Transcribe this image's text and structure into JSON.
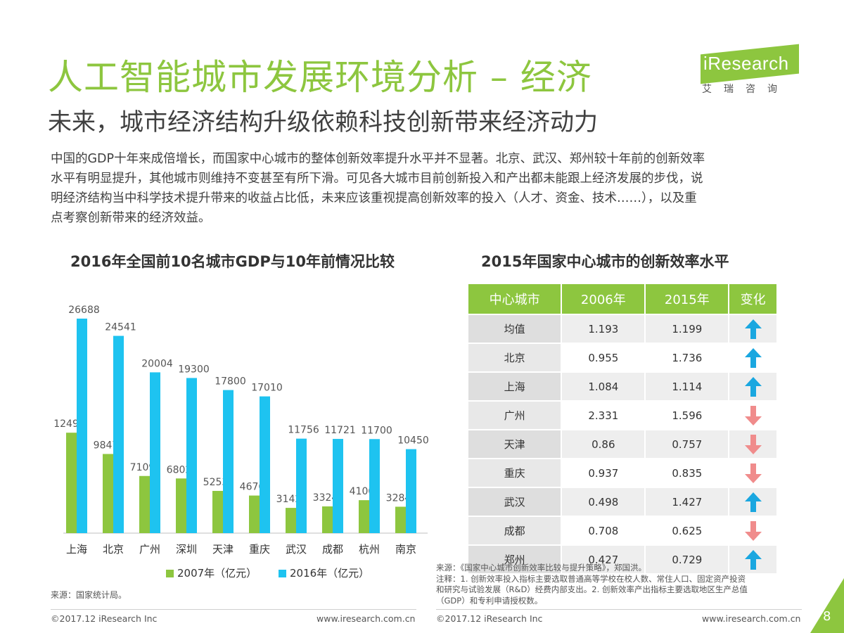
{
  "header": {
    "title": "人工智能城市发展环境分析 – 经济",
    "subtitle": "未来，城市经济结构升级依赖科技创新带来经济动力",
    "intro": [
      "中国的GDP十年来成倍增长，而国家中心城市的整体创新效率提升水平并不显著。北京、武汉、郑州较十年前的创新效率",
      "水平有明显提升，其他城市则维持不变甚至有所下滑。可见各大城市目前创新投入和产出都未能跟上经济发展的步伐，说",
      "明经济结构当中科学技术提升带来的收益占比低，未来应该重视提高创新效率的投入（人才、资金、技术……），以及重",
      "点考察创新带来的经济效益。"
    ]
  },
  "logo": {
    "text": "iResearch",
    "cn": "艾瑞咨询",
    "color": "#8dc63f"
  },
  "chart_data": {
    "type": "bar",
    "title": "2016年全国前10名城市GDP与10年前情况比较",
    "categories": [
      "上海",
      "北京",
      "广州",
      "深圳",
      "天津",
      "重庆",
      "武汉",
      "成都",
      "杭州",
      "南京"
    ],
    "series": [
      {
        "name": "2007年（亿元）",
        "color": "#8dc63f",
        "values": [
          12494,
          9847,
          7109,
          6802,
          5253,
          4676,
          3142,
          3324,
          4100,
          3284
        ]
      },
      {
        "name": "2016年（亿元）",
        "color": "#1ec3f0",
        "values": [
          26688,
          24541,
          20004,
          19300,
          17800,
          17010,
          11756,
          11721,
          11700,
          10450
        ]
      }
    ],
    "ylim": [
      0,
      28000
    ],
    "legend": "bottom",
    "source": "来源：国家统计局。"
  },
  "table": {
    "title": "2015年国家中心城市的创新效率水平",
    "headers": [
      "中心城市",
      "2006年",
      "2015年",
      "变化"
    ],
    "rows": [
      {
        "city": "均值",
        "y2006": "1.193",
        "y2015": "1.199",
        "change": "up"
      },
      {
        "city": "北京",
        "y2006": "0.955",
        "y2015": "1.736",
        "change": "up"
      },
      {
        "city": "上海",
        "y2006": "1.084",
        "y2015": "1.114",
        "change": "up"
      },
      {
        "city": "广州",
        "y2006": "2.331",
        "y2015": "1.596",
        "change": "down"
      },
      {
        "city": "天津",
        "y2006": "0.86",
        "y2015": "0.757",
        "change": "down"
      },
      {
        "city": "重庆",
        "y2006": "0.937",
        "y2015": "0.835",
        "change": "down"
      },
      {
        "city": "武汉",
        "y2006": "0.498",
        "y2015": "1.427",
        "change": "up"
      },
      {
        "city": "成都",
        "y2006": "0.708",
        "y2015": "0.625",
        "change": "down"
      },
      {
        "city": "郑州",
        "y2006": "0.427",
        "y2015": "0.729",
        "change": "up"
      }
    ],
    "up_color": "#1aa7e0",
    "down_color": "#f08c8c",
    "source_lines": [
      "来源：《国家中心城市创新效率比较与提升策略》，郑国洪。",
      "注释：1. 创新效率投入指标主要选取普通高等学校在校人数、常住人口、固定资产投资",
      "和研究与试验发展（R&D）经费内部支出。2. 创新效率产出指标主要选取地区生产总值",
      "（GDP）和专利申请授权数。"
    ]
  },
  "footer": {
    "left_copyright": "©2017.12 iResearch Inc",
    "left_url": "www.iresearch.com.cn",
    "right_copyright": "©2017.12 iResearch Inc",
    "right_url": "www.iresearch.com.cn",
    "page": "8"
  }
}
